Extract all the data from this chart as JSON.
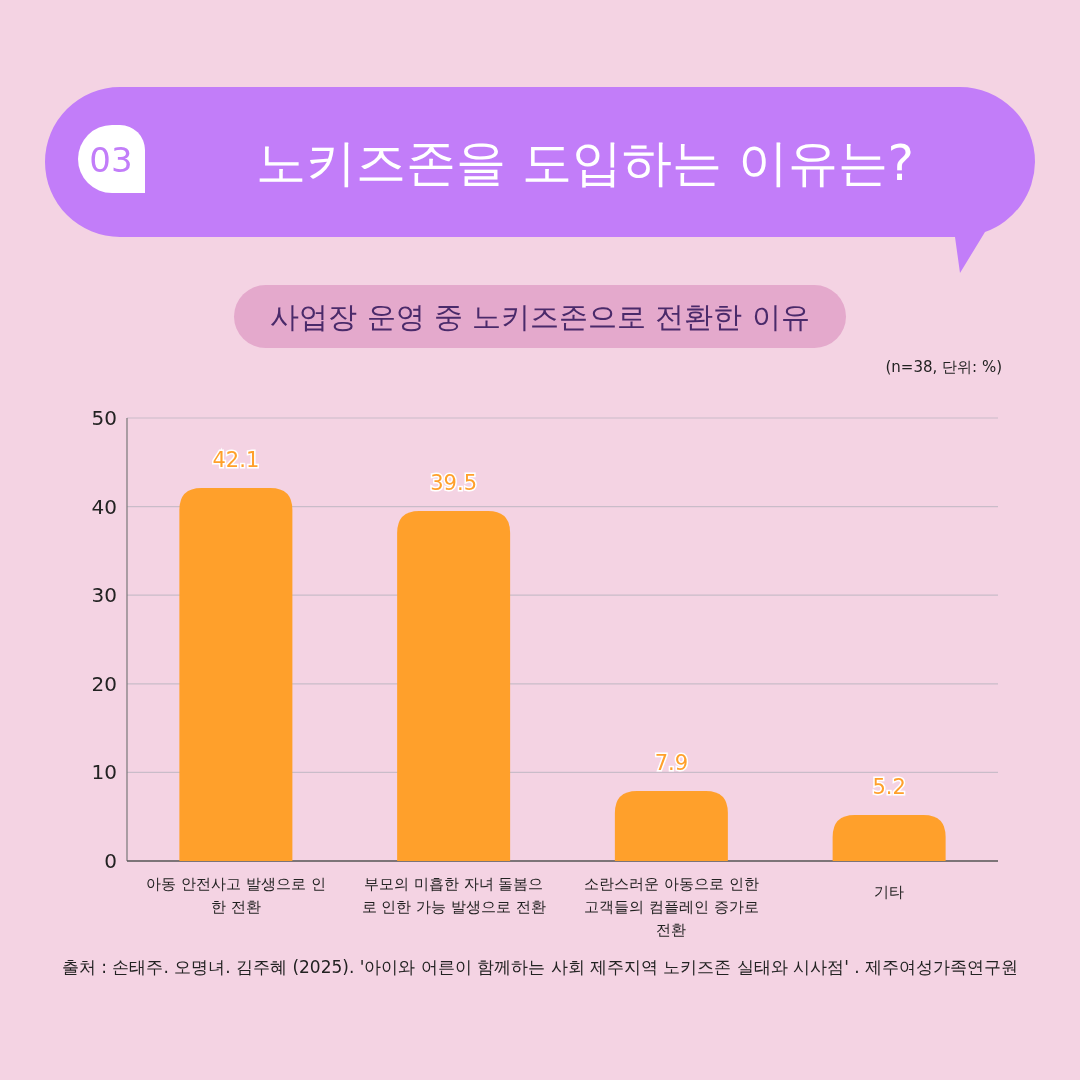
{
  "chart_data": {
    "type": "bar",
    "title": "노키즈존을 도입하는 이유는?",
    "subtitle": "사업장 운영 중 노키즈존으로 전환한 이유",
    "annotations": [
      "03",
      "(n=38, 단위: %)",
      "출처 : 손태주. 오명녀. 김주혜 (2025). '아이와 어른이 함께하는 사회 제주지역 노키즈존 실태와 시사점' . 제주여성가족연구원"
    ],
    "categories": [
      "아동 안전사고 발생으로 인한 전환",
      "부모의 미흡한 자녀 돌봄으로 인한 가능 발생으로 전환",
      "소란스러운 아동으로 인한 고객들의 컴플레인 증가로 전환",
      "기타"
    ],
    "values": [
      42.1,
      39.5,
      7.9,
      5.2
    ],
    "color": "#ffa02b",
    "data_labels": true,
    "ylim": [
      0,
      50
    ],
    "yticks": [
      0,
      10,
      20,
      30,
      40,
      50
    ],
    "grid": "y"
  }
}
